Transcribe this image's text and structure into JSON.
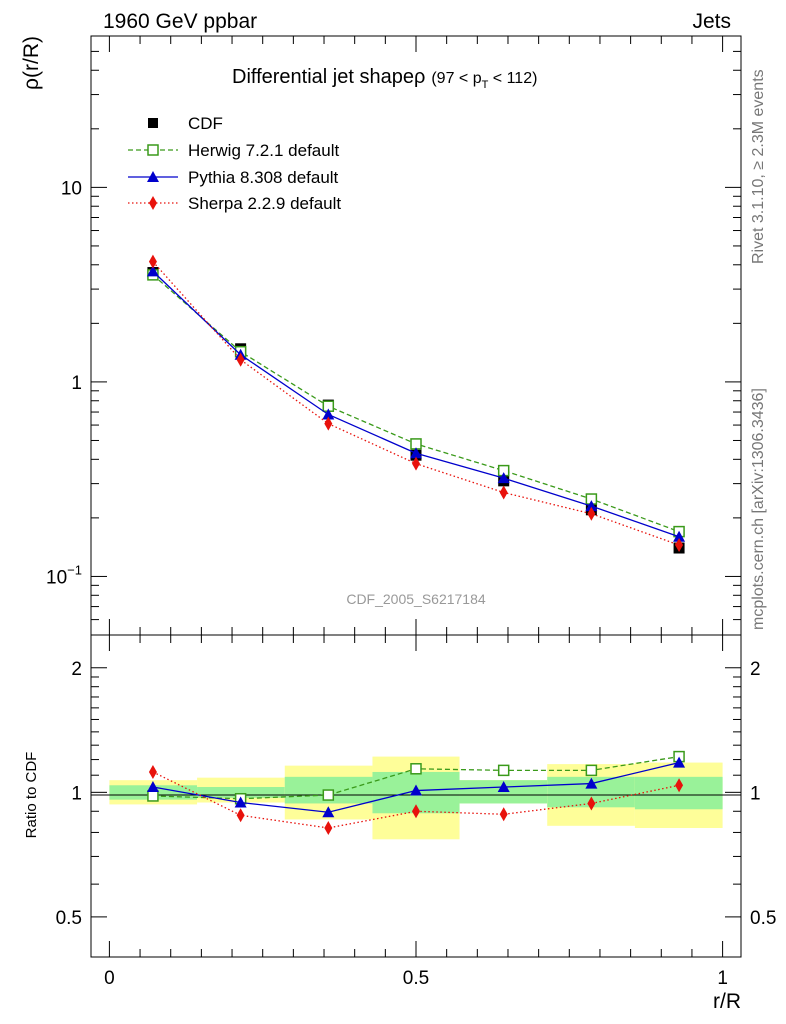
{
  "header": {
    "left_label": "1960 GeV ppbar",
    "right_label": "Jets"
  },
  "side_labels": {
    "rivet": "Rivet 3.1.10, ≥ 2.3M events",
    "mcplots": "mcplots.cern.ch [arXiv:1306.3436]"
  },
  "chart_data": [
    {
      "type": "line",
      "panel": "main",
      "title": "Differential jet shapeρ",
      "title_cut": {
        "prefix": "(97 < p",
        "subscript": "T",
        "suffix": " < 112)"
      },
      "ylabel": "ρ(r/R)",
      "xlabel": "",
      "xlim": [
        -0.03,
        1.03
      ],
      "ylim": [
        0.05,
        60
      ],
      "y_scale": "log",
      "y_tick_labels": [
        {
          "value": 0.1,
          "mantissa": "10",
          "exponent": "−1"
        },
        {
          "value": 1,
          "label": "1"
        },
        {
          "value": 10,
          "label": "10"
        }
      ],
      "watermark": "CDF_2005_S6217184",
      "legend_position": "top-left",
      "x": [
        0.071,
        0.214,
        0.357,
        0.5,
        0.643,
        0.786,
        0.929
      ],
      "series": [
        {
          "name": "CDF",
          "color": "#000000",
          "marker": "filled-square",
          "line": "none",
          "values": [
            3.65,
            1.48,
            0.76,
            0.42,
            0.31,
            0.22,
            0.14
          ]
        },
        {
          "name": "Herwig 7.2.1 default",
          "color": "#3a9a1a",
          "marker": "open-square",
          "line": "dashed",
          "values": [
            3.55,
            1.43,
            0.75,
            0.48,
            0.35,
            0.25,
            0.17
          ]
        },
        {
          "name": "Pythia 8.308 default",
          "color": "#0000cc",
          "marker": "filled-triangle",
          "line": "solid",
          "values": [
            3.7,
            1.38,
            0.68,
            0.43,
            0.32,
            0.23,
            0.16
          ]
        },
        {
          "name": "Sherpa 2.2.9 default",
          "color": "#e8120c",
          "marker": "filled-diamond",
          "line": "dotted",
          "values": [
            4.15,
            1.3,
            0.61,
            0.38,
            0.27,
            0.21,
            0.145
          ]
        }
      ]
    },
    {
      "type": "line",
      "panel": "ratio",
      "ylabel": "Ratio to CDF",
      "xlabel": "r/R",
      "xlim": [
        -0.03,
        1.03
      ],
      "ylim": [
        0.4,
        2.4
      ],
      "y_scale": "log",
      "x_tick_labels": [
        {
          "value": 0,
          "label": "0"
        },
        {
          "value": 0.5,
          "label": "0.5"
        },
        {
          "value": 1,
          "label": "1"
        }
      ],
      "y_tick_labels": [
        {
          "value": 0.5,
          "label": "0.5"
        },
        {
          "value": 1,
          "label": "1"
        },
        {
          "value": 2,
          "label": "2"
        }
      ],
      "reference_line": 1,
      "bands": [
        {
          "x0": 0.0,
          "x1": 0.143,
          "inner": [
            0.96,
            1.04
          ],
          "outer": [
            0.935,
            1.07
          ]
        },
        {
          "x0": 0.143,
          "x1": 0.286,
          "inner": [
            0.97,
            1.03
          ],
          "outer": [
            0.945,
            1.085
          ]
        },
        {
          "x0": 0.286,
          "x1": 0.429,
          "inner": [
            0.94,
            1.09
          ],
          "outer": [
            0.86,
            1.16
          ]
        },
        {
          "x0": 0.429,
          "x1": 0.571,
          "inner": [
            0.89,
            1.12
          ],
          "outer": [
            0.77,
            1.22
          ]
        },
        {
          "x0": 0.571,
          "x1": 0.714,
          "inner": [
            0.94,
            1.07
          ],
          "outer": [
            0.94,
            1.07
          ]
        },
        {
          "x0": 0.714,
          "x1": 0.857,
          "inner": [
            0.92,
            1.09
          ],
          "outer": [
            0.83,
            1.17
          ]
        },
        {
          "x0": 0.857,
          "x1": 1.0,
          "inner": [
            0.91,
            1.09
          ],
          "outer": [
            0.82,
            1.18
          ]
        }
      ],
      "x": [
        0.071,
        0.214,
        0.357,
        0.5,
        0.643,
        0.786,
        0.929
      ],
      "series": [
        {
          "name": "Herwig 7.2.1 default",
          "color": "#3a9a1a",
          "marker": "open-square",
          "line": "dashed",
          "values": [
            0.98,
            0.965,
            0.985,
            1.14,
            1.13,
            1.13,
            1.22
          ]
        },
        {
          "name": "Pythia 8.308 default",
          "color": "#0000cc",
          "marker": "filled-triangle",
          "line": "solid",
          "values": [
            1.03,
            0.945,
            0.895,
            1.01,
            1.03,
            1.05,
            1.18
          ]
        },
        {
          "name": "Sherpa 2.2.9 default",
          "color": "#e8120c",
          "marker": "filled-diamond",
          "line": "dotted",
          "values": [
            1.12,
            0.88,
            0.82,
            0.9,
            0.885,
            0.94,
            1.04
          ]
        }
      ]
    }
  ],
  "colors": {
    "band_inner": "#99f299",
    "band_outer": "#fefe99",
    "axis": "#000000",
    "watermark": "#999999",
    "side_text": "#777777"
  }
}
